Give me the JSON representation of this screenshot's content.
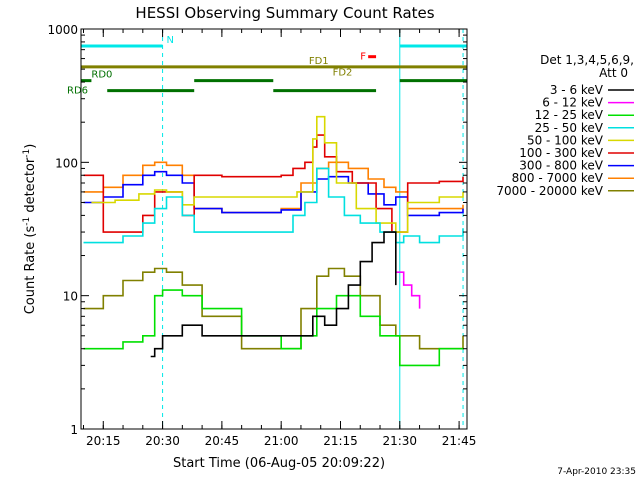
{
  "chart_data": {
    "type": "line",
    "title": "HESSI Observing Summary Count Rates",
    "xlabel": "Start Time (06-Aug-05 20:09:22)",
    "ylabel": "Count Rate (s⁻¹ detector⁻¹)",
    "ylabel_main": "Count Rate (s",
    "ylabel_sup1": "-1",
    "ylabel_mid": " detector",
    "ylabel_sup2": "-1",
    "ylabel_end": ")",
    "yscale": "log",
    "ylim": [
      1,
      1000
    ],
    "xlim": [
      "20:09:22",
      "21:47:00"
    ],
    "x_ticks": [
      "20:15",
      "20:30",
      "20:45",
      "21:00",
      "21:15",
      "21:30",
      "21:45"
    ],
    "y_ticks": [
      "1",
      "10",
      "100",
      "1000"
    ],
    "grid": false,
    "legend_position": "right",
    "legend_header_1": "Det 1,3,4,5,6,9,",
    "legend_header_2": "Att 0",
    "footer_date": "7-Apr-2010 23:35",
    "series": [
      {
        "name": "3 - 6 keV",
        "color": "#000000",
        "x": [
          "20:27",
          "20:28",
          "20:30",
          "20:35",
          "20:40",
          "20:50",
          "21:00",
          "21:05",
          "21:08",
          "21:11",
          "21:14",
          "21:17",
          "21:20",
          "21:23",
          "21:26",
          "21:29"
        ],
        "y": [
          3.5,
          4,
          5,
          6,
          5,
          5,
          5,
          5,
          7,
          6,
          8,
          12,
          18,
          25,
          30,
          12
        ]
      },
      {
        "name": "6 - 12 keV",
        "color": "#ff00ff",
        "x": [
          "21:29",
          "21:31",
          "21:33",
          "21:35"
        ],
        "y": [
          15,
          12,
          10,
          8
        ]
      },
      {
        "name": "12 - 25 keV",
        "color": "#00e000",
        "x": [
          "20:10",
          "20:15",
          "20:20",
          "20:25",
          "20:28",
          "20:30",
          "20:35",
          "20:40",
          "20:50",
          "21:00",
          "21:05",
          "21:09",
          "21:14",
          "21:20",
          "21:25",
          "21:30",
          "21:40",
          "21:46"
        ],
        "y": [
          4,
          4,
          4.5,
          5,
          10,
          11,
          10,
          8,
          5,
          4,
          5,
          8,
          10,
          7,
          5,
          3,
          4,
          4
        ]
      },
      {
        "name": "25 - 50 keV",
        "color": "#00e0e0",
        "x": [
          "20:10",
          "20:15",
          "20:20",
          "20:25",
          "20:28",
          "20:31",
          "20:35",
          "20:38",
          "21:00",
          "21:03",
          "21:06",
          "21:09",
          "21:12",
          "21:16",
          "21:20",
          "21:25",
          "21:29",
          "21:31",
          "21:35",
          "21:40",
          "21:46"
        ],
        "y": [
          25,
          25,
          28,
          35,
          45,
          55,
          40,
          30,
          30,
          40,
          50,
          90,
          55,
          40,
          35,
          30,
          25,
          28,
          25,
          28,
          32
        ]
      },
      {
        "name": "50 - 100 keV",
        "color": "#d8d800",
        "x": [
          "20:12",
          "20:18",
          "20:24",
          "20:28",
          "20:31",
          "20:35",
          "20:38",
          "20:45",
          "20:55",
          "21:00",
          "21:04",
          "21:08",
          "21:09",
          "21:11",
          "21:14",
          "21:19",
          "21:24",
          "21:29",
          "21:32",
          "21:40",
          "21:46"
        ],
        "y": [
          50,
          52,
          58,
          62,
          60,
          48,
          55,
          55,
          55,
          55,
          60,
          150,
          220,
          140,
          70,
          45,
          35,
          30,
          50,
          55,
          60
        ]
      },
      {
        "name": "100 - 300 keV",
        "color": "#e00000",
        "x": [
          "20:10",
          "20:15",
          "20:20",
          "20:25",
          "20:28",
          "20:31",
          "20:35",
          "20:38",
          "20:45",
          "20:55",
          "21:00",
          "21:03",
          "21:06",
          "21:08",
          "21:09",
          "21:11",
          "21:14",
          "21:18",
          "21:24",
          "21:28",
          "21:32",
          "21:40",
          "21:46"
        ],
        "y": [
          80,
          30,
          30,
          40,
          60,
          60,
          40,
          80,
          78,
          78,
          80,
          90,
          100,
          130,
          160,
          110,
          85,
          70,
          45,
          30,
          70,
          72,
          78
        ]
      },
      {
        "name": "300 - 800 keV",
        "color": "#0000ff",
        "x": [
          "20:10",
          "20:15",
          "20:20",
          "20:25",
          "20:28",
          "20:31",
          "20:35",
          "20:38",
          "20:45",
          "20:55",
          "21:00",
          "21:05",
          "21:09",
          "21:12",
          "21:17",
          "21:22",
          "21:26",
          "21:29",
          "21:32",
          "21:40",
          "21:46"
        ],
        "y": [
          50,
          55,
          68,
          80,
          85,
          80,
          70,
          45,
          42,
          42,
          44,
          60,
          75,
          78,
          70,
          58,
          48,
          55,
          40,
          42,
          45
        ]
      },
      {
        "name": "800 - 7000 keV",
        "color": "#ff8000",
        "x": [
          "20:10",
          "20:15",
          "20:20",
          "20:25",
          "20:28",
          "20:31",
          "20:35",
          "20:38",
          "20:45",
          "20:55",
          "21:00",
          "21:05",
          "21:09",
          "21:12",
          "21:17",
          "21:22",
          "21:26",
          "21:29",
          "21:32",
          "21:40",
          "21:46"
        ],
        "y": [
          60,
          65,
          80,
          95,
          100,
          95,
          80,
          45,
          42,
          42,
          45,
          70,
          90,
          100,
          90,
          75,
          65,
          60,
          45,
          45,
          48
        ]
      },
      {
        "name": "7000 - 20000 keV",
        "color": "#808000",
        "x": [
          "20:10",
          "20:15",
          "20:20",
          "20:25",
          "20:28",
          "20:31",
          "20:35",
          "20:40",
          "20:50",
          "21:00",
          "21:05",
          "21:09",
          "21:12",
          "21:16",
          "21:20",
          "21:25",
          "21:29",
          "21:35",
          "21:40",
          "21:46"
        ],
        "y": [
          8,
          10,
          13,
          15,
          16,
          15,
          12,
          7,
          4,
          4,
          8,
          14,
          16,
          14,
          10,
          6,
          5,
          4,
          4,
          5
        ]
      }
    ],
    "state_bars": [
      {
        "name": "N",
        "label": "N",
        "color": "#00e8e8",
        "y": 745,
        "segments": [
          [
            "20:09:22",
            "20:30"
          ],
          [
            "21:30",
            "21:47"
          ]
        ]
      },
      {
        "name": "F",
        "label": "F",
        "color": "#ff0000",
        "y": 620,
        "segments": [
          [
            "21:22",
            "21:24"
          ]
        ]
      },
      {
        "name": "FD1",
        "label": "FD1",
        "color": "#808000",
        "y": 520,
        "segments": [
          [
            "20:09:22",
            "21:47"
          ]
        ]
      },
      {
        "name": "FD2",
        "label": "FD2",
        "color": "#808000",
        "y": 480,
        "segments": []
      },
      {
        "name": "RD0",
        "label": "RD0",
        "color": "#007000",
        "y": 410,
        "segments": [
          [
            "20:09:22",
            "20:12"
          ],
          [
            "20:38",
            "20:58"
          ],
          [
            "21:30",
            "21:47"
          ]
        ]
      },
      {
        "name": "RD6",
        "label": "RD6",
        "color": "#007000",
        "y": 345,
        "segments": [
          [
            "20:16",
            "20:38"
          ],
          [
            "20:58",
            "21:24"
          ]
        ]
      }
    ],
    "vlines": [
      {
        "x": "20:09:22",
        "style": "solid",
        "color": "#00e8e8"
      },
      {
        "x": "20:30",
        "style": "dashed",
        "color": "#00e8e8"
      },
      {
        "x": "21:30",
        "style": "solid",
        "color": "#00e8e8"
      },
      {
        "x": "21:46",
        "style": "dashed",
        "color": "#00e8e8"
      }
    ]
  }
}
